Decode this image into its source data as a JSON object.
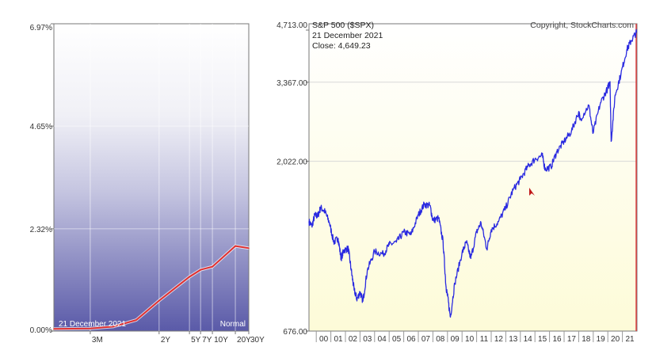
{
  "chart_data": [
    {
      "type": "line",
      "title": "",
      "annotation_date": "21  December 2021",
      "annotation_label": "Normal",
      "ylim": [
        0,
        6.97
      ],
      "y_ticks": [
        "0.00%",
        "2.32%",
        "4.65%",
        "6.97%"
      ],
      "y_tick_values": [
        0,
        2.32,
        4.65,
        6.97
      ],
      "x_labels": [
        {
          "label": "3M",
          "months": 3
        },
        {
          "label": "2Y",
          "months": 24
        },
        {
          "label": "5Y",
          "months": 60
        },
        {
          "label": "7Y",
          "months": 84
        },
        {
          "label": "10Y",
          "months": 120
        },
        {
          "label": "20Y",
          "months": 240
        },
        {
          "label": "30Y",
          "months": 360
        }
      ],
      "series": [
        {
          "color": "#e03030",
          "x": [
            1,
            3,
            6,
            12,
            24,
            36,
            60,
            84,
            120,
            240,
            360
          ],
          "values": [
            0.05,
            0.06,
            0.1,
            0.25,
            0.69,
            0.93,
            1.23,
            1.39,
            1.46,
            1.93,
            1.88
          ]
        }
      ]
    },
    {
      "type": "line",
      "title": "S&P 500 ($SPX)",
      "copyright": "Copyright, StockCharts.com",
      "date_label": "21  December 2021",
      "close_label": "Close: 4,649.23",
      "y_scale": "log",
      "ylim": [
        676,
        4713
      ],
      "y_ticks": [
        "676.00",
        "2,022.00",
        "3,367.00",
        "4,713.00"
      ],
      "y_tick_values": [
        676,
        2022,
        3367,
        4713
      ],
      "x_ticks": [
        "00",
        "01",
        "02",
        "03",
        "04",
        "05",
        "06",
        "07",
        "08",
        "09",
        "10",
        "11",
        "12",
        "13",
        "14",
        "15",
        "16",
        "17",
        "18",
        "19",
        "20",
        "21"
      ],
      "xlim": [
        1999.5,
        2022.0
      ],
      "series": [
        {
          "color": "#2a2ae0",
          "x": [
            1999.5,
            1999.7,
            1999.9,
            2000.1,
            2000.3,
            2000.6,
            2000.9,
            2001.2,
            2001.5,
            2001.7,
            2001.9,
            2002.2,
            2002.4,
            2002.6,
            2002.8,
            2003.0,
            2003.2,
            2003.5,
            2004.0,
            2004.6,
            2005.0,
            2005.5,
            2006.0,
            2006.5,
            2007.0,
            2007.4,
            2007.8,
            2008.0,
            2008.4,
            2008.7,
            2008.9,
            2009.0,
            2009.2,
            2009.5,
            2010.0,
            2010.3,
            2010.6,
            2011.0,
            2011.3,
            2011.7,
            2012.0,
            2012.5,
            2013.0,
            2013.5,
            2014.0,
            2014.5,
            2015.0,
            2015.5,
            2015.7,
            2016.1,
            2016.5,
            2017.0,
            2017.5,
            2018.0,
            2018.1,
            2018.7,
            2018.98,
            2019.5,
            2019.98,
            2020.15,
            2020.23,
            2020.5,
            2020.9,
            2021.3,
            2021.6,
            2021.97
          ],
          "values": [
            1370,
            1330,
            1430,
            1420,
            1500,
            1460,
            1360,
            1200,
            1230,
            1080,
            1140,
            1150,
            1000,
            880,
            830,
            870,
            820,
            1000,
            1130,
            1110,
            1180,
            1200,
            1280,
            1260,
            1430,
            1530,
            1520,
            1380,
            1400,
            1200,
            900,
            850,
            740,
            920,
            1120,
            1200,
            1080,
            1280,
            1360,
            1150,
            1300,
            1370,
            1500,
            1680,
            1800,
            1950,
            2050,
            2100,
            1920,
            1950,
            2150,
            2300,
            2450,
            2780,
            2650,
            2900,
            2420,
            2950,
            3230,
            3380,
            2300,
            3100,
            3550,
            4150,
            4400,
            4649
          ]
        }
      ]
    }
  ]
}
